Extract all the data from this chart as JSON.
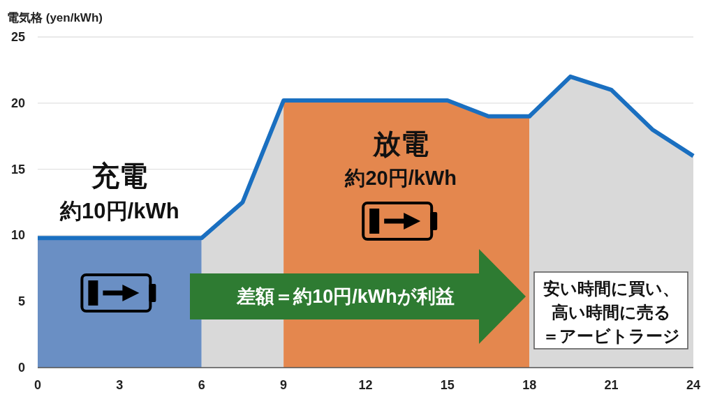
{
  "chart_data": {
    "type": "line",
    "ylabel": "電気格 (yen/kWh)",
    "x": [
      0,
      6,
      7.5,
      9,
      15,
      16.5,
      18,
      19.5,
      21,
      22.5,
      24
    ],
    "series": [
      {
        "color": "#1a6fc0",
        "values": [
          9.8,
          9.8,
          12.5,
          20.2,
          20.2,
          19,
          19,
          22,
          21,
          18,
          16
        ]
      }
    ],
    "xlim": [
      0,
      24
    ],
    "xticks": [
      0,
      3,
      6,
      9,
      12,
      15,
      18,
      21,
      24
    ],
    "ylim": [
      0,
      25
    ],
    "yticks": [
      0,
      5,
      10,
      15,
      20,
      25
    ],
    "grid": "y",
    "line_style": "solid",
    "bands": [
      {
        "axis": "x",
        "from": 0,
        "to": 6,
        "label": "充電",
        "color": "#6a8fc4"
      },
      {
        "axis": "x",
        "from": 6,
        "to": 9,
        "color": "#d9d9d9"
      },
      {
        "axis": "x",
        "from": 9,
        "to": 18,
        "label": "放電",
        "color": "#e4874e"
      },
      {
        "axis": "x",
        "from": 18,
        "to": 24,
        "color": "#d9d9d9"
      }
    ],
    "annotations": [
      "約10円/kWh",
      "約20円/kWh",
      "差額＝約10円/kWhが利益",
      "安い時間に買い、",
      "高い時間に売る",
      "＝アービトラージ"
    ]
  }
}
